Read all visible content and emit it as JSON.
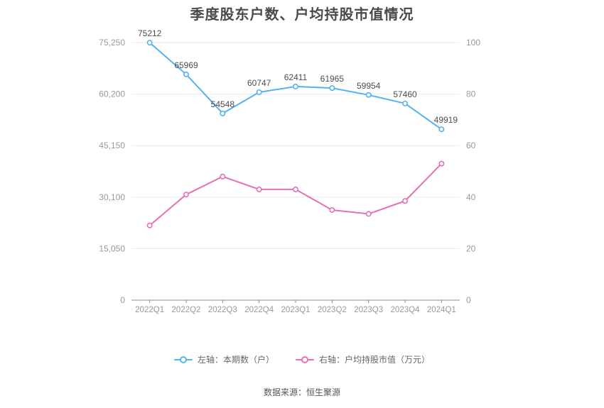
{
  "title": "季度股东户数、户均持股市值情况",
  "chart_data": {
    "type": "line",
    "categories": [
      "2022Q1",
      "2022Q2",
      "2022Q3",
      "2022Q4",
      "2023Q1",
      "2023Q2",
      "2023Q3",
      "2023Q4",
      "2024Q1"
    ],
    "series": [
      {
        "name": "左轴：本期数（户）",
        "axis": "left",
        "color": "#55B2EE",
        "values": [
          75212,
          65969,
          54548,
          60747,
          62411,
          61965,
          59954,
          57460,
          49919
        ],
        "show_labels": true
      },
      {
        "name": "右轴：户均持股市值（万元）",
        "axis": "right",
        "color": "#E76FB4",
        "values": [
          29,
          41,
          48,
          43,
          43,
          35,
          33.5,
          38.5,
          53
        ],
        "show_labels": false
      }
    ],
    "left_axis": {
      "min": 0,
      "max": 75250,
      "tick_labels": [
        "0",
        "15,050",
        "30,100",
        "45,150",
        "60,200",
        "75,250"
      ]
    },
    "right_axis": {
      "min": 0,
      "max": 100,
      "tick_labels": [
        "0",
        "20",
        "40",
        "60",
        "80",
        "100"
      ]
    },
    "grid": true,
    "legend_position": "bottom"
  },
  "footer": {
    "source": "数据来源：恒生聚源"
  },
  "colors": {
    "grid_line": "#E6EBF2",
    "axis_line": "#8C8C8C",
    "axis_text": "#999999",
    "data_label": "#4D4D4D",
    "title_text": "#4A4A4A",
    "marker_fill": "#FFFFFF"
  }
}
